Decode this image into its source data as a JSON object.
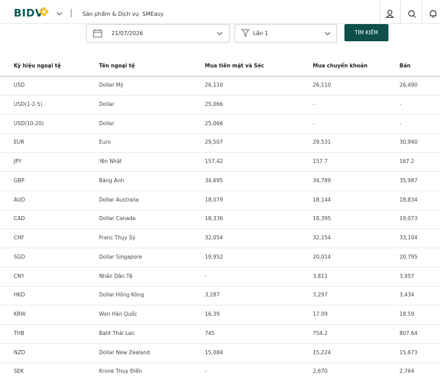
{
  "header": {
    "logo": "BIDV",
    "nav": [
      "Sản phẩm & Dịch vụ",
      "SMEasy"
    ]
  },
  "filters": {
    "date": "21/07/2026",
    "session": "Lần 1",
    "button": "TÌM KIẾM"
  },
  "table": {
    "columns": [
      "Ký hiệu ngoại tệ",
      "Tên ngoại tệ",
      "Mua tiền mặt và Séc",
      "Mua chuyển khoản",
      "Bán"
    ],
    "rows": [
      [
        "USD",
        "Dollar Mỹ",
        "26,110",
        "26,110",
        "26,490"
      ],
      [
        "USD(1-2-5)",
        "Dollar",
        "25,066",
        "-",
        "-"
      ],
      [
        "USD(10-20)",
        "Dollar",
        "25,066",
        "-",
        "-"
      ],
      [
        "EUR",
        "Euro",
        "29,507",
        "29,531",
        "30,940"
      ],
      [
        "JPY",
        "Yên Nhật",
        "157.42",
        "157.7",
        "167.2"
      ],
      [
        "GBP",
        "Bảng Anh",
        "34,695",
        "34,789",
        "35,987"
      ],
      [
        "AUD",
        "Dollar Australia",
        "18,079",
        "18,144",
        "18,834"
      ],
      [
        "CAD",
        "Dollar Canada",
        "18,336",
        "18,395",
        "19,073"
      ],
      [
        "CHF",
        "Franc Thụy Sỹ",
        "32,054",
        "32,154",
        "33,104"
      ],
      [
        "SGD",
        "Dollar Singapore",
        "19,952",
        "20,014",
        "20,795"
      ],
      [
        "CNY",
        "Nhân Dân Tệ",
        "-",
        "3,811",
        "3,957"
      ],
      [
        "HKD",
        "Dollar Hồng Kông",
        "3,287",
        "3,297",
        "3,434"
      ],
      [
        "KRW",
        "Won Hàn Quốc",
        "16.39",
        "17.09",
        "18.59"
      ],
      [
        "THB",
        "Baht Thái Lan",
        "745",
        "754.2",
        "807.64"
      ],
      [
        "NZD",
        "Dollar New Zealand",
        "15,084",
        "15,224",
        "15,673"
      ],
      [
        "SEK",
        "Krone Thụy Điển",
        "-",
        "2,670",
        "2,764"
      ]
    ]
  }
}
